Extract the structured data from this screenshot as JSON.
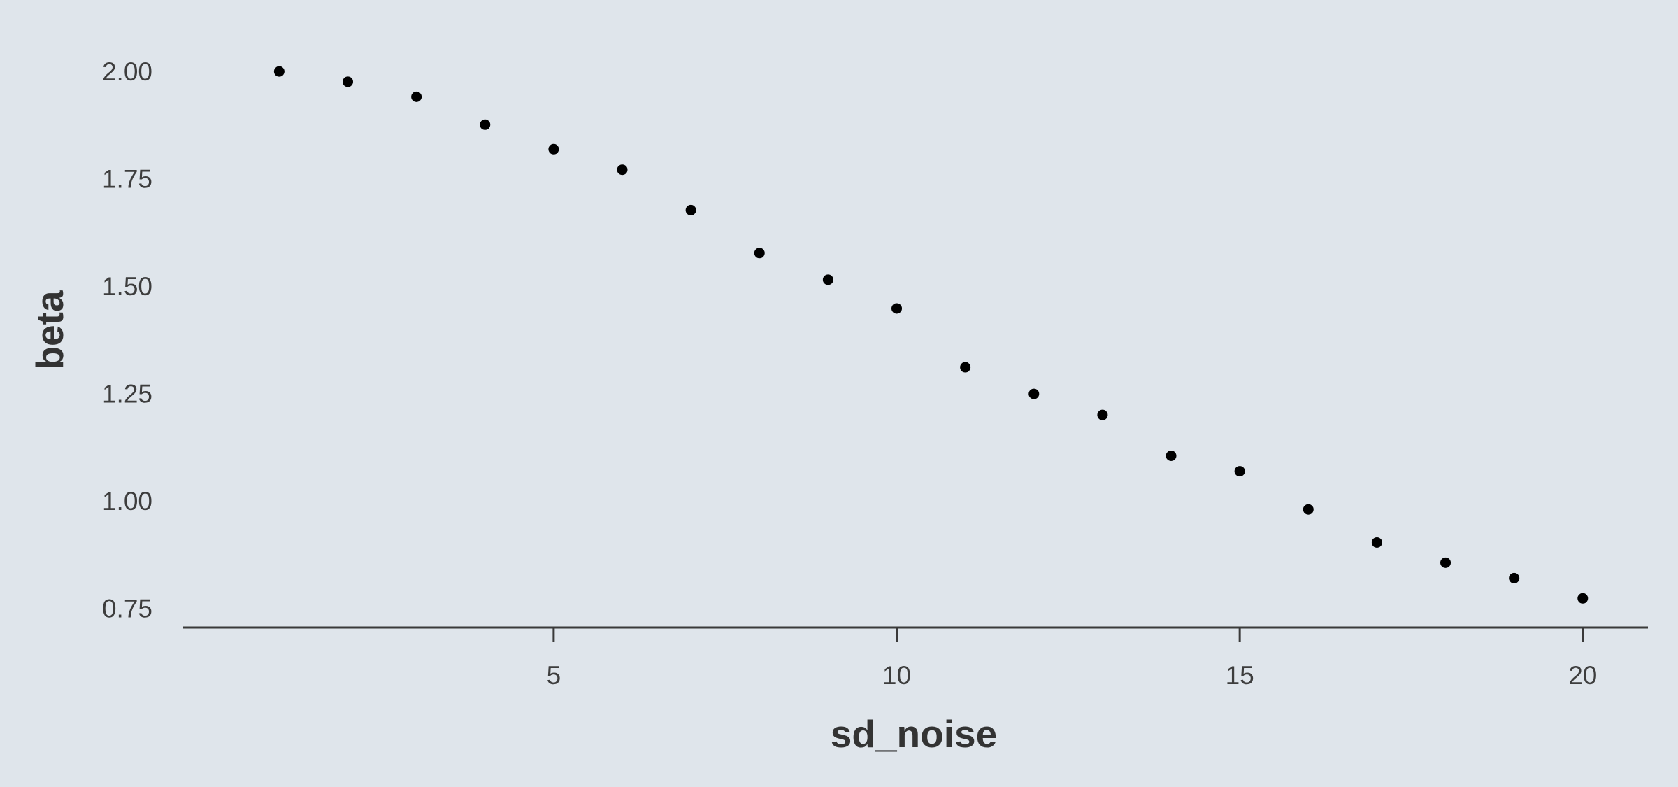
{
  "chart_data": {
    "type": "scatter",
    "title": "",
    "xlabel": "sd_noise",
    "ylabel": "beta",
    "x": [
      1,
      2,
      3,
      4,
      5,
      6,
      7,
      8,
      9,
      10,
      11,
      12,
      13,
      14,
      15,
      16,
      17,
      18,
      19,
      20
    ],
    "y": [
      2.0,
      1.976,
      1.941,
      1.876,
      1.819,
      1.771,
      1.677,
      1.577,
      1.515,
      1.448,
      1.311,
      1.249,
      1.2,
      1.105,
      1.069,
      0.98,
      0.903,
      0.856,
      0.82,
      0.773
    ],
    "xlim": [
      -0.4,
      20.95
    ],
    "ylim": [
      0.705,
      2.085
    ],
    "x_ticks": [
      5,
      10,
      15,
      20
    ],
    "y_ticks": [
      0.75,
      1.0,
      1.25,
      1.5,
      1.75,
      2.0
    ],
    "x_tick_labels": [
      "5",
      "10",
      "15",
      "20"
    ],
    "y_tick_labels": [
      "0.75",
      "1.00",
      "1.25",
      "1.50",
      "1.75",
      "2.00"
    ],
    "grid": false,
    "legend": "none",
    "colors": {
      "background": "#dfe5eb",
      "point": "#000000",
      "axis": "#3a3a3a",
      "text": "#3d3d3d"
    }
  }
}
